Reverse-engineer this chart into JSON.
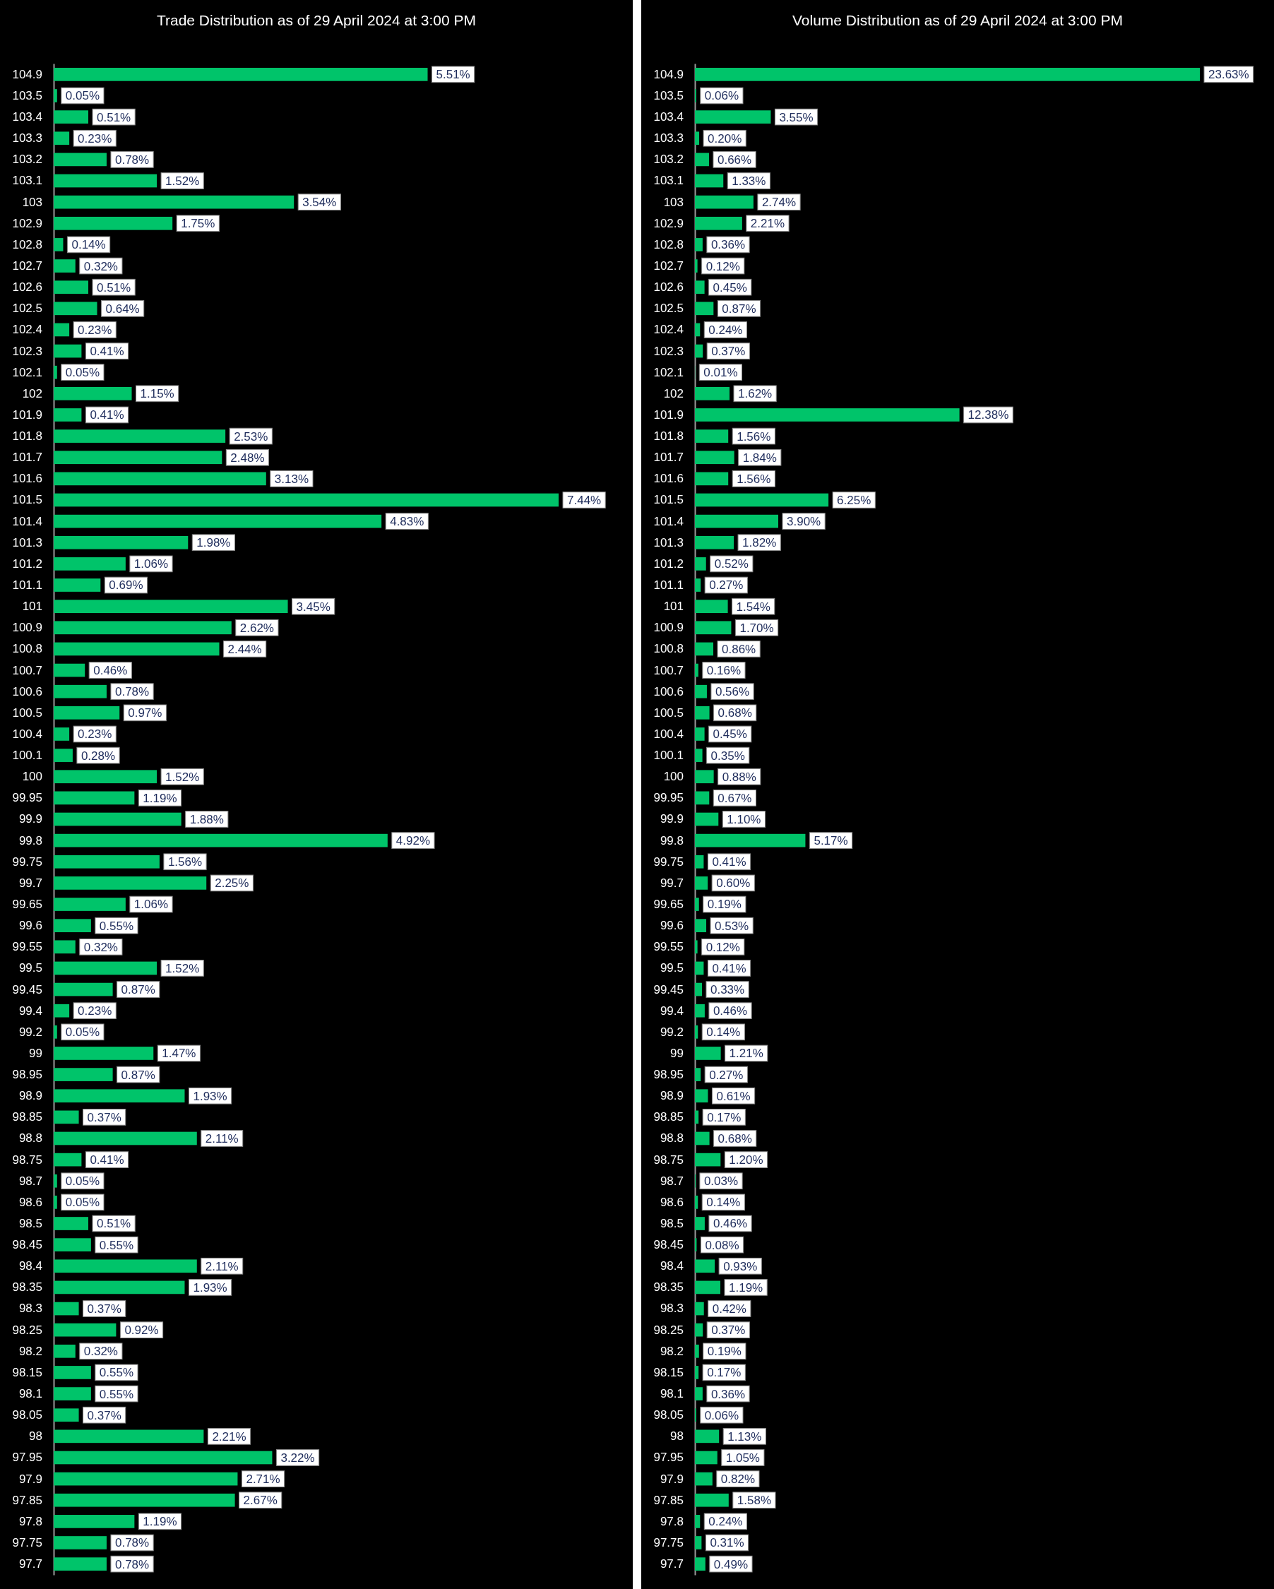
{
  "chart_data": [
    {
      "type": "bar",
      "orientation": "horizontal",
      "title": "Trade Distribution as of 29 April 2024 at 3:00 PM",
      "color": "#00c46a",
      "tick_labels": "y",
      "categories": [
        "104.9",
        "103.5",
        "103.4",
        "103.3",
        "103.2",
        "103.1",
        "103",
        "102.9",
        "102.8",
        "102.7",
        "102.6",
        "102.5",
        "102.4",
        "102.3",
        "102.1",
        "102",
        "101.9",
        "101.8",
        "101.7",
        "101.6",
        "101.5",
        "101.4",
        "101.3",
        "101.2",
        "101.1",
        "101",
        "100.9",
        "100.8",
        "100.7",
        "100.6",
        "100.5",
        "100.4",
        "100.1",
        "100",
        "99.95",
        "99.9",
        "99.8",
        "99.75",
        "99.7",
        "99.65",
        "99.6",
        "99.55",
        "99.5",
        "99.45",
        "99.4",
        "99.2",
        "99",
        "98.95",
        "98.9",
        "98.85",
        "98.8",
        "98.75",
        "98.7",
        "98.6",
        "98.5",
        "98.45",
        "98.4",
        "98.35",
        "98.3",
        "98.25",
        "98.2",
        "98.15",
        "98.1",
        "98.05",
        "98",
        "97.95",
        "97.9",
        "97.85",
        "97.8",
        "97.75",
        "97.7"
      ],
      "values": [
        5.51,
        0.05,
        0.51,
        0.23,
        0.78,
        1.52,
        3.54,
        1.75,
        0.14,
        0.32,
        0.51,
        0.64,
        0.23,
        0.41,
        0.05,
        1.15,
        0.41,
        2.53,
        2.48,
        3.13,
        7.44,
        4.83,
        1.98,
        1.06,
        0.69,
        3.45,
        2.62,
        2.44,
        0.46,
        0.78,
        0.97,
        0.23,
        0.28,
        1.52,
        1.19,
        1.88,
        4.92,
        1.56,
        2.25,
        1.06,
        0.55,
        0.32,
        1.52,
        0.87,
        0.23,
        0.05,
        1.47,
        0.87,
        1.93,
        0.37,
        2.11,
        0.41,
        0.05,
        0.05,
        0.51,
        0.55,
        2.11,
        1.93,
        0.37,
        0.92,
        0.32,
        0.55,
        0.55,
        0.37,
        2.21,
        3.22,
        2.71,
        2.67,
        1.19,
        0.78,
        0.78
      ],
      "value_labels": [
        "5.51%",
        "0.05%",
        "0.51%",
        "0.23%",
        "0.78%",
        "1.52%",
        "3.54%",
        "1.75%",
        "0.14%",
        "0.32%",
        "0.51%",
        "0.64%",
        "0.23%",
        "0.41%",
        "0.05%",
        "1.15%",
        "0.41%",
        "2.53%",
        "2.48%",
        "3.13%",
        "7.44%",
        "4.83%",
        "1.98%",
        "1.06%",
        "0.69%",
        "3.45%",
        "2.62%",
        "2.44%",
        "0.46%",
        "0.78%",
        "0.97%",
        "0.23%",
        "0.28%",
        "1.52%",
        "1.19%",
        "1.88%",
        "4.92%",
        "1.56%",
        "2.25%",
        "1.06%",
        "0.55%",
        "0.32%",
        "1.52%",
        "0.87%",
        "0.23%",
        "0.05%",
        "1.47%",
        "0.87%",
        "1.93%",
        "0.37%",
        "2.11%",
        "0.41%",
        "0.05%",
        "0.05%",
        "0.51%",
        "0.55%",
        "2.11%",
        "1.93%",
        "0.37%",
        "0.92%",
        "0.32%",
        "0.55%",
        "0.55%",
        "0.37%",
        "2.21%",
        "3.22%",
        "2.71%",
        "2.67%",
        "1.19%",
        "0.78%",
        "0.78%"
      ]
    },
    {
      "type": "bar",
      "orientation": "horizontal",
      "title": "Volume Distribution as of 29 April 2024 at 3:00 PM",
      "color": "#00c46a",
      "tick_labels": "y",
      "categories": [
        "104.9",
        "103.5",
        "103.4",
        "103.3",
        "103.2",
        "103.1",
        "103",
        "102.9",
        "102.8",
        "102.7",
        "102.6",
        "102.5",
        "102.4",
        "102.3",
        "102.1",
        "102",
        "101.9",
        "101.8",
        "101.7",
        "101.6",
        "101.5",
        "101.4",
        "101.3",
        "101.2",
        "101.1",
        "101",
        "100.9",
        "100.8",
        "100.7",
        "100.6",
        "100.5",
        "100.4",
        "100.1",
        "100",
        "99.95",
        "99.9",
        "99.8",
        "99.75",
        "99.7",
        "99.65",
        "99.6",
        "99.55",
        "99.5",
        "99.45",
        "99.4",
        "99.2",
        "99",
        "98.95",
        "98.9",
        "98.85",
        "98.8",
        "98.75",
        "98.7",
        "98.6",
        "98.5",
        "98.45",
        "98.4",
        "98.35",
        "98.3",
        "98.25",
        "98.2",
        "98.15",
        "98.1",
        "98.05",
        "98",
        "97.95",
        "97.9",
        "97.85",
        "97.8",
        "97.75",
        "97.7"
      ],
      "values": [
        23.63,
        0.06,
        3.55,
        0.2,
        0.66,
        1.33,
        2.74,
        2.21,
        0.36,
        0.12,
        0.45,
        0.87,
        0.24,
        0.37,
        0.01,
        1.62,
        12.38,
        1.56,
        1.84,
        1.56,
        6.25,
        3.9,
        1.82,
        0.52,
        0.27,
        1.54,
        1.7,
        0.86,
        0.16,
        0.56,
        0.68,
        0.45,
        0.35,
        0.88,
        0.67,
        1.1,
        5.17,
        0.41,
        0.6,
        0.19,
        0.53,
        0.12,
        0.41,
        0.33,
        0.46,
        0.14,
        1.21,
        0.27,
        0.61,
        0.17,
        0.68,
        1.2,
        0.03,
        0.14,
        0.46,
        0.08,
        0.93,
        1.19,
        0.42,
        0.37,
        0.19,
        0.17,
        0.36,
        0.06,
        1.13,
        1.05,
        0.82,
        1.58,
        0.24,
        0.31,
        0.49
      ],
      "value_labels": [
        "23.63%",
        "0.06%",
        "3.55%",
        "0.20%",
        "0.66%",
        "1.33%",
        "2.74%",
        "2.21%",
        "0.36%",
        "0.12%",
        "0.45%",
        "0.87%",
        "0.24%",
        "0.37%",
        "0.01%",
        "1.62%",
        "12.38%",
        "1.56%",
        "1.84%",
        "1.56%",
        "6.25%",
        "3.90%",
        "1.82%",
        "0.52%",
        "0.27%",
        "1.54%",
        "1.70%",
        "0.86%",
        "0.16%",
        "0.56%",
        "0.68%",
        "0.45%",
        "0.35%",
        "0.88%",
        "0.67%",
        "1.10%",
        "5.17%",
        "0.41%",
        "0.60%",
        "0.19%",
        "0.53%",
        "0.12%",
        "0.41%",
        "0.33%",
        "0.46%",
        "0.14%",
        "1.21%",
        "0.27%",
        "0.61%",
        "0.17%",
        "0.68%",
        "1.20%",
        "0.03%",
        "0.14%",
        "0.46%",
        "0.08%",
        "0.93%",
        "1.19%",
        "0.42%",
        "0.37%",
        "0.19%",
        "0.17%",
        "0.36%",
        "0.06%",
        "1.13%",
        "1.05%",
        "0.82%",
        "1.58%",
        "0.24%",
        "0.31%",
        "0.49%"
      ]
    }
  ]
}
